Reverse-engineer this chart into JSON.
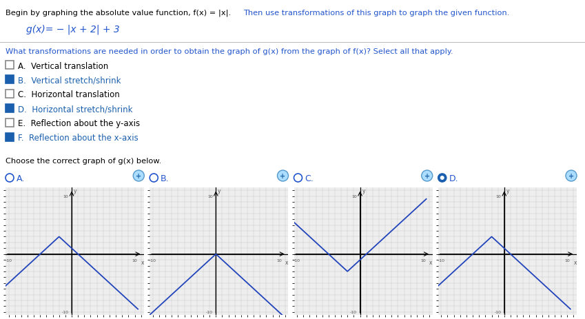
{
  "title_black": "Begin by graphing the absolute value function, f(x) = |x|. ",
  "title_blue": "Then use transformations of this graph to graph the given function.",
  "function_line": "g(x)= − |x + 2| + 3",
  "question_text": "What transformations are needed in order to obtain the graph of g(x) from the graph of f(x)? Select all that apply.",
  "choices": [
    {
      "letter": "A",
      "text": "Vertical translation",
      "checked": false
    },
    {
      "letter": "B",
      "text": "Vertical stretch/shrink",
      "checked": true
    },
    {
      "letter": "C",
      "text": "Horizontal translation",
      "checked": false
    },
    {
      "letter": "D",
      "text": "Horizontal stretch/shrink",
      "checked": true
    },
    {
      "letter": "E",
      "text": "Reflection about the y-axis",
      "checked": false
    },
    {
      "letter": "F",
      "text": "Reflection about the x-axis",
      "checked": true
    }
  ],
  "graph_question": "Choose the correct graph of g(x) below.",
  "graphs": [
    {
      "label": "A",
      "selected": false,
      "vertex": [
        -2,
        3
      ],
      "reflect": true,
      "slope": 1
    },
    {
      "label": "B",
      "selected": false,
      "vertex": [
        0,
        0
      ],
      "reflect": true,
      "slope": 1
    },
    {
      "label": "C",
      "selected": false,
      "vertex": [
        -2,
        -3
      ],
      "reflect": false,
      "slope": 1
    },
    {
      "label": "D",
      "selected": true,
      "vertex": [
        -2,
        3
      ],
      "reflect": true,
      "slope": 1
    }
  ],
  "black": "#000000",
  "blue": "#2255cc",
  "check_blue": "#1a5fad",
  "graph_line_color": "#2244bb",
  "bg": "#ffffff",
  "grid_color": "#cccccc",
  "graph_bg": "#eeeeee",
  "unchecked_border": "#888888",
  "axis_label_color": "#555555",
  "radio_unsel_color": "#2255cc",
  "magnifier_color": "#44aaee"
}
